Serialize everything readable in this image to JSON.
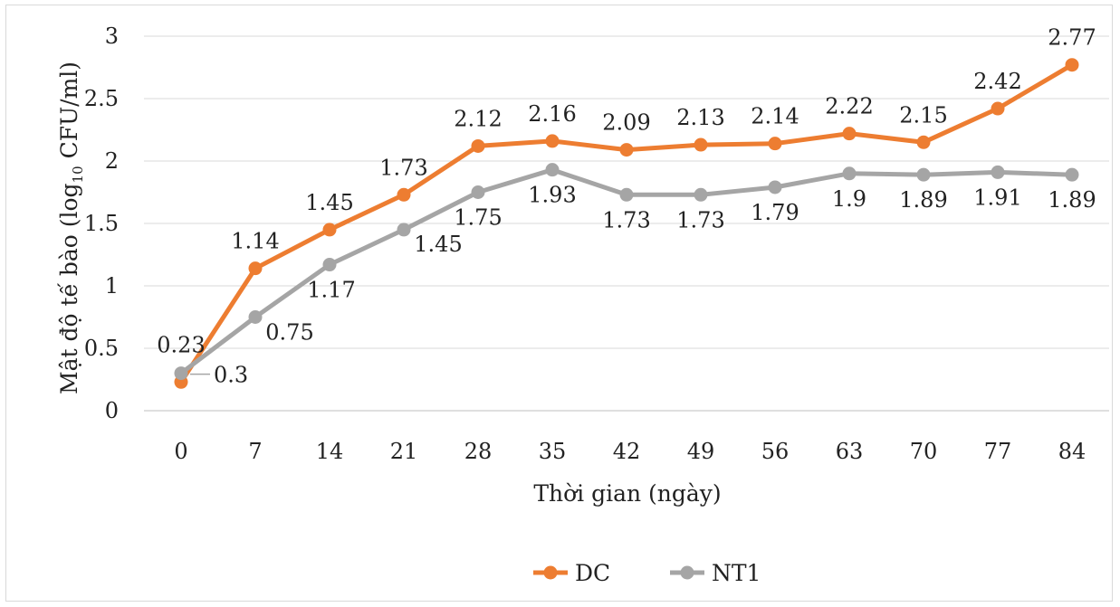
{
  "chart_data": {
    "type": "line",
    "title": "",
    "xlabel": "Thời gian (ngày)",
    "ylabel": {
      "prefix": "Mật độ tế bào (log",
      "subscript": "10",
      "suffix": " CFU/ml)"
    },
    "x": [
      0,
      7,
      14,
      21,
      28,
      35,
      42,
      49,
      56,
      63,
      70,
      77,
      84
    ],
    "x_tick_labels": [
      "0",
      "7",
      "14",
      "21",
      "28",
      "35",
      "42",
      "49",
      "56",
      "63",
      "70",
      "77",
      "84"
    ],
    "ylim": [
      0,
      3
    ],
    "y_ticks": [
      0,
      0.5,
      1,
      1.5,
      2,
      2.5,
      3
    ],
    "y_tick_labels": [
      "0",
      "0.5",
      "1",
      "1.5",
      "2",
      "2.5",
      "3"
    ],
    "grid": "horizontal",
    "legend_position": "bottom-center",
    "series": [
      {
        "name": "DC",
        "color": "#ED7D31",
        "values": [
          0.23,
          1.14,
          1.45,
          1.73,
          2.12,
          2.16,
          2.09,
          2.13,
          2.14,
          2.22,
          2.15,
          2.42,
          2.77
        ],
        "labels": [
          "0.23",
          "1.14",
          "1.45",
          "1.73",
          "2.12",
          "2.16",
          "2.09",
          "2.13",
          "2.14",
          "2.22",
          "2.15",
          "2.42",
          "2.77"
        ]
      },
      {
        "name": "NT1",
        "color": "#A5A5A5",
        "values": [
          0.3,
          0.75,
          1.17,
          1.45,
          1.75,
          1.93,
          1.73,
          1.73,
          1.79,
          1.9,
          1.89,
          1.91,
          1.89
        ],
        "labels": [
          "0.3",
          "0.75",
          "1.17",
          "1.45",
          "1.75",
          "1.93",
          "1.73",
          "1.73",
          "1.79",
          "1.9",
          "1.89",
          "1.91",
          "1.89"
        ]
      }
    ]
  }
}
